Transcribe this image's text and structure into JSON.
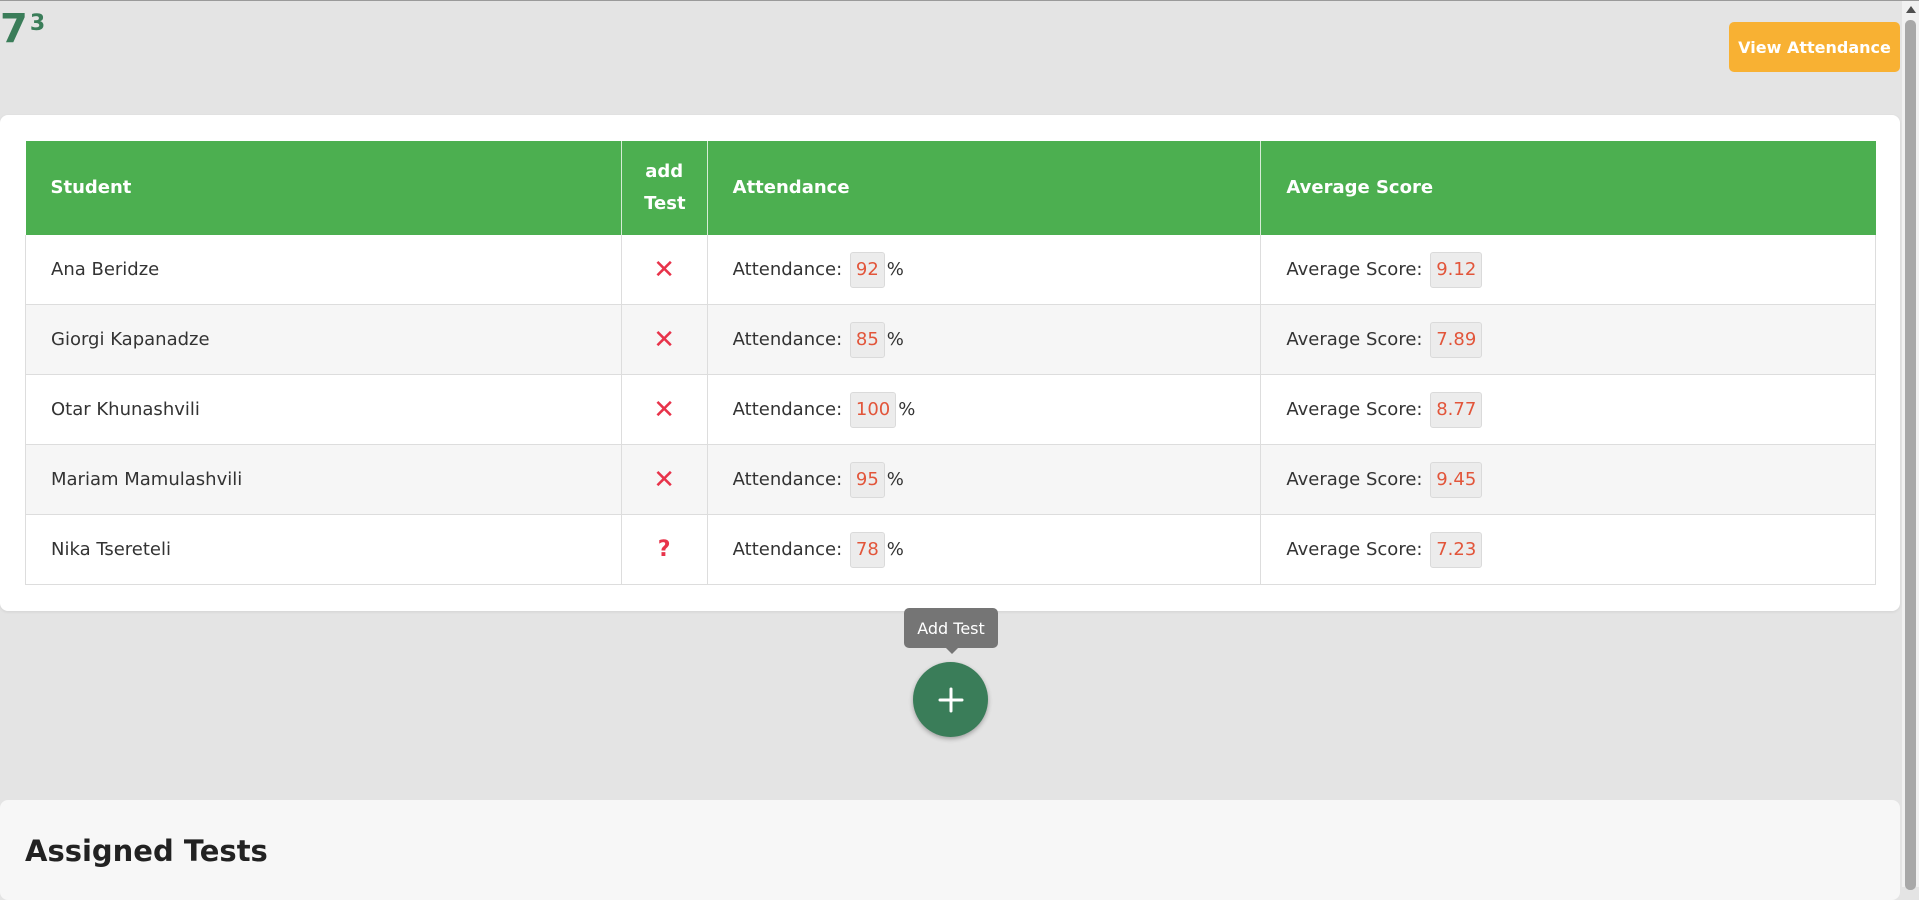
{
  "header": {
    "grade_base": "7",
    "grade_sup": "3",
    "view_attendance_label": "View Attendance"
  },
  "table": {
    "columns": [
      "Student",
      "add Test",
      "Attendance",
      "Average Score"
    ],
    "attendance_prefix": "Attendance:",
    "attendance_suffix": "%",
    "score_prefix": "Average Score:",
    "rows": [
      {
        "student": "Ana Beridze",
        "add_test": "✕",
        "attendance": "92",
        "score": "9.12"
      },
      {
        "student": "Giorgi Kapanadze",
        "add_test": "✕",
        "attendance": "85",
        "score": "7.89"
      },
      {
        "student": "Otar Khunashvili",
        "add_test": "✕",
        "attendance": "100",
        "score": "8.77"
      },
      {
        "student": "Mariam Mamulashvili",
        "add_test": "✕",
        "attendance": "95",
        "score": "9.45"
      },
      {
        "student": "Nika Tsereteli",
        "add_test": "?",
        "attendance": "78",
        "score": "7.23"
      }
    ]
  },
  "fab": {
    "tooltip": "Add Test",
    "icon": "plus-icon"
  },
  "assigned": {
    "title": "Assigned Tests"
  },
  "colors": {
    "header_green": "#4caf50",
    "accent_orange": "#f8b133",
    "fab_green": "#3a7d59",
    "x_red": "#e8334a",
    "value_red": "#e2553a"
  }
}
